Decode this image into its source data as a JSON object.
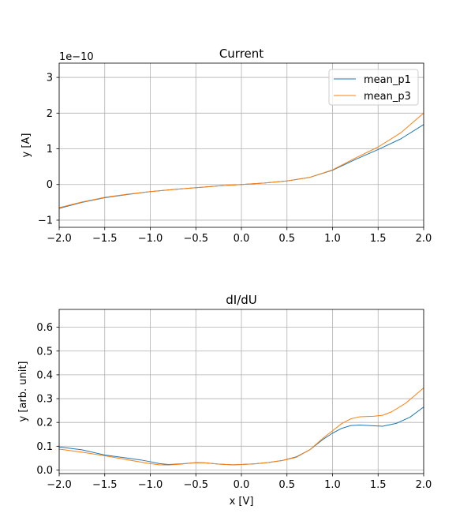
{
  "chart_data": [
    {
      "type": "line",
      "title": "Current",
      "xlabel": "",
      "ylabel": "y [A]",
      "offset_text": "1e−10",
      "xlim": [
        -2.0,
        2.0
      ],
      "ylim": [
        -1.2,
        3.4
      ],
      "xticks": [
        -2.0,
        -1.5,
        -1.0,
        -0.5,
        0.0,
        0.5,
        1.0,
        1.5,
        2.0
      ],
      "xtick_labels": [
        "−2.0",
        "−1.5",
        "−1.0",
        "−0.5",
        "0.0",
        "0.5",
        "1.0",
        "1.5",
        "2.0"
      ],
      "yticks": [
        -1,
        0,
        1,
        2,
        3
      ],
      "ytick_labels": [
        "−1",
        "0",
        "1",
        "2",
        "3"
      ],
      "grid": true,
      "legend_position": "top-right",
      "series": [
        {
          "name": "mean_p1",
          "color": "#1f77b4",
          "x": [
            -2.0,
            -1.75,
            -1.5,
            -1.25,
            -1.0,
            -0.75,
            -0.5,
            -0.25,
            0.0,
            0.25,
            0.5,
            0.75,
            1.0,
            1.25,
            1.5,
            1.75,
            2.0
          ],
          "y": [
            -0.67,
            -0.5,
            -0.37,
            -0.28,
            -0.2,
            -0.14,
            -0.09,
            -0.04,
            0.0,
            0.04,
            0.1,
            0.2,
            0.4,
            0.7,
            0.98,
            1.28,
            1.68
          ]
        },
        {
          "name": "mean_p3",
          "color": "#ff7f0e",
          "x": [
            -2.0,
            -1.75,
            -1.5,
            -1.25,
            -1.0,
            -0.75,
            -0.5,
            -0.25,
            0.0,
            0.25,
            0.5,
            0.75,
            1.0,
            1.25,
            1.5,
            1.75,
            2.0
          ],
          "y": [
            -0.65,
            -0.49,
            -0.36,
            -0.27,
            -0.2,
            -0.14,
            -0.09,
            -0.04,
            0.0,
            0.04,
            0.1,
            0.2,
            0.41,
            0.74,
            1.05,
            1.45,
            2.0
          ]
        }
      ]
    },
    {
      "type": "line",
      "title": "dI/dU",
      "xlabel": "x [V]",
      "ylabel": "y [arb. unit]",
      "xlim": [
        -2.0,
        2.0
      ],
      "ylim": [
        -0.015,
        0.675
      ],
      "xticks": [
        -2.0,
        -1.5,
        -1.0,
        -0.5,
        0.0,
        0.5,
        1.0,
        1.5,
        2.0
      ],
      "xtick_labels": [
        "−2.0",
        "−1.5",
        "−1.0",
        "−0.5",
        "0.0",
        "0.5",
        "1.0",
        "1.5",
        "2.0"
      ],
      "yticks": [
        0.0,
        0.1,
        0.2,
        0.3,
        0.4,
        0.5,
        0.6
      ],
      "ytick_labels": [
        "0.0",
        "0.1",
        "0.2",
        "0.3",
        "0.4",
        "0.5",
        "0.6"
      ],
      "grid": true,
      "series": [
        {
          "name": "mean_p1",
          "color": "#1f77b4",
          "x": [
            -2.0,
            -1.75,
            -1.5,
            -1.25,
            -1.1,
            -1.0,
            -0.9,
            -0.8,
            -0.65,
            -0.5,
            -0.4,
            -0.25,
            -0.1,
            0.0,
            0.15,
            0.3,
            0.45,
            0.6,
            0.75,
            0.9,
            1.0,
            1.1,
            1.2,
            1.3,
            1.4,
            1.55,
            1.7,
            1.85,
            2.0
          ],
          "y": [
            0.097,
            0.085,
            0.063,
            0.05,
            0.042,
            0.035,
            0.027,
            0.023,
            0.026,
            0.031,
            0.03,
            0.025,
            0.022,
            0.023,
            0.026,
            0.032,
            0.04,
            0.055,
            0.085,
            0.13,
            0.155,
            0.175,
            0.187,
            0.189,
            0.187,
            0.184,
            0.196,
            0.222,
            0.265
          ]
        },
        {
          "name": "mean_p3",
          "color": "#ff7f0e",
          "x": [
            -2.0,
            -1.75,
            -1.5,
            -1.25,
            -1.1,
            -1.0,
            -0.9,
            -0.8,
            -0.65,
            -0.5,
            -0.4,
            -0.25,
            -0.1,
            0.0,
            0.15,
            0.3,
            0.45,
            0.6,
            0.75,
            0.9,
            1.0,
            1.1,
            1.2,
            1.3,
            1.45,
            1.55,
            1.65,
            1.8,
            2.0
          ],
          "y": [
            0.088,
            0.075,
            0.06,
            0.043,
            0.033,
            0.027,
            0.022,
            0.021,
            0.025,
            0.031,
            0.03,
            0.025,
            0.022,
            0.023,
            0.026,
            0.032,
            0.04,
            0.053,
            0.085,
            0.135,
            0.165,
            0.195,
            0.215,
            0.224,
            0.226,
            0.23,
            0.245,
            0.28,
            0.345
          ]
        }
      ]
    }
  ]
}
